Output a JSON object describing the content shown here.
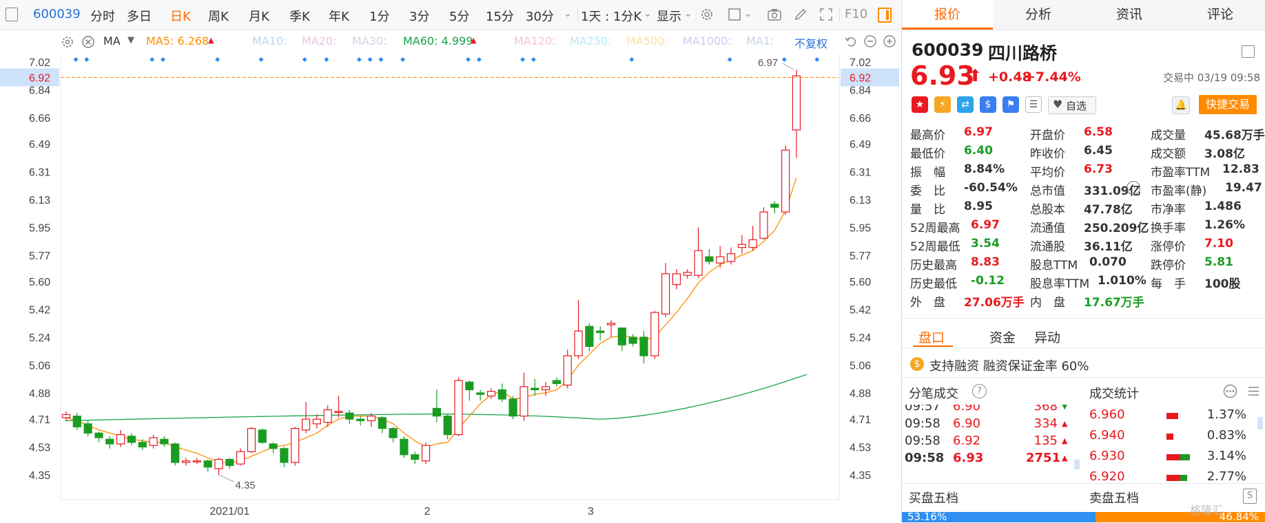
{
  "toolbar": {
    "code": "600039",
    "items": [
      "分时",
      "多日",
      "日K",
      "周K",
      "月K",
      "季K",
      "年K",
      "1分",
      "3分",
      "5分",
      "15分",
      "30分"
    ],
    "active_item": "日K",
    "kline_mode": "1天 : 1分K",
    "display": "显示",
    "f10": "F10"
  },
  "ma_bar": {
    "selector": "MA",
    "ma5": "MA5: 6.268",
    "ma10": "MA10:",
    "ma20": "MA20:",
    "ma30": "MA30:",
    "ma60": "MA60: 4.999",
    "ma120": "MA120:",
    "ma250": "MA250:",
    "ma500": "MA500:",
    "ma1000": "MA1000:",
    "ma1": "MA1:",
    "fuquan": "不复权",
    "colors": {
      "ma5": "#ff8c00",
      "ma60": "#1aa34a",
      "faded": "#c9d3e0"
    }
  },
  "chart_data": {
    "type": "candlestick",
    "ylim": [
      4.24,
      7.1
    ],
    "y_ticks": [
      "7.02",
      "6.84",
      "6.66",
      "6.49",
      "6.31",
      "6.13",
      "5.95",
      "5.77",
      "5.60",
      "5.42",
      "5.24",
      "5.06",
      "4.88",
      "4.71",
      "4.53",
      "4.35"
    ],
    "y_tick_values": [
      7.02,
      6.84,
      6.66,
      6.49,
      6.31,
      6.13,
      5.95,
      5.77,
      5.6,
      5.42,
      5.24,
      5.06,
      4.88,
      4.71,
      4.53,
      4.35
    ],
    "current_price_label": "6.92",
    "current_price": 6.92,
    "max_label": "6.97",
    "min_label": "4.35",
    "x_labels": [
      {
        "text": "2021/01",
        "index": 15
      },
      {
        "text": "2",
        "index": 33
      },
      {
        "text": "3",
        "index": 48
      }
    ],
    "candles": [
      [
        4.72,
        4.74,
        4.7,
        4.76
      ],
      [
        4.73,
        4.66,
        4.64,
        4.75
      ],
      [
        4.68,
        4.62,
        4.6,
        4.7
      ],
      [
        4.62,
        4.59,
        4.56,
        4.63
      ],
      [
        4.58,
        4.55,
        4.52,
        4.6
      ],
      [
        4.55,
        4.61,
        4.53,
        4.64
      ],
      [
        4.6,
        4.56,
        4.54,
        4.62
      ],
      [
        4.56,
        4.53,
        4.51,
        4.58
      ],
      [
        4.54,
        4.59,
        4.52,
        4.61
      ],
      [
        4.58,
        4.55,
        4.53,
        4.6
      ],
      [
        4.55,
        4.43,
        4.41,
        4.56
      ],
      [
        4.43,
        4.44,
        4.41,
        4.46
      ],
      [
        4.44,
        4.44,
        4.42,
        4.46
      ],
      [
        4.44,
        4.4,
        4.37,
        4.45
      ],
      [
        4.39,
        4.45,
        4.35,
        4.46
      ],
      [
        4.45,
        4.41,
        4.39,
        4.46
      ],
      [
        4.42,
        4.5,
        4.41,
        4.52
      ],
      [
        4.5,
        4.65,
        4.49,
        4.66
      ],
      [
        4.64,
        4.56,
        4.55,
        4.65
      ],
      [
        4.55,
        4.52,
        4.49,
        4.56
      ],
      [
        4.52,
        4.43,
        4.4,
        4.53
      ],
      [
        4.43,
        4.65,
        4.41,
        4.66
      ],
      [
        4.64,
        4.71,
        4.62,
        4.82
      ],
      [
        4.68,
        4.71,
        4.65,
        4.74
      ],
      [
        4.69,
        4.77,
        4.66,
        4.8
      ],
      [
        4.76,
        4.76,
        4.72,
        4.86
      ],
      [
        4.75,
        4.71,
        4.68,
        4.77
      ],
      [
        4.71,
        4.7,
        4.67,
        4.73
      ],
      [
        4.7,
        4.73,
        4.66,
        4.75
      ],
      [
        4.72,
        4.65,
        4.62,
        4.73
      ],
      [
        4.65,
        4.59,
        4.56,
        4.66
      ],
      [
        4.58,
        4.48,
        4.46,
        4.6
      ],
      [
        4.48,
        4.45,
        4.42,
        4.5
      ],
      [
        4.44,
        4.54,
        4.42,
        4.56
      ],
      [
        4.78,
        4.73,
        4.69,
        4.9
      ],
      [
        4.73,
        4.61,
        4.58,
        4.74
      ],
      [
        4.61,
        4.96,
        4.6,
        4.98
      ],
      [
        4.95,
        4.9,
        4.83,
        4.96
      ],
      [
        4.88,
        4.87,
        4.83,
        4.9
      ],
      [
        4.86,
        4.89,
        4.84,
        4.91
      ],
      [
        4.9,
        4.84,
        4.82,
        4.94
      ],
      [
        4.84,
        4.73,
        4.71,
        4.86
      ],
      [
        4.73,
        4.92,
        4.7,
        5.01
      ],
      [
        4.91,
        4.9,
        4.86,
        4.97
      ],
      [
        4.9,
        4.92,
        4.86,
        4.95
      ],
      [
        4.96,
        4.94,
        4.92,
        4.98
      ],
      [
        4.93,
        5.12,
        4.91,
        5.16
      ],
      [
        5.12,
        5.28,
        5.1,
        5.48
      ],
      [
        5.31,
        5.18,
        5.15,
        5.33
      ],
      [
        5.28,
        5.27,
        5.22,
        5.31
      ],
      [
        5.32,
        5.33,
        5.24,
        5.35
      ],
      [
        5.3,
        5.19,
        5.15,
        5.3
      ],
      [
        5.24,
        5.2,
        5.18,
        5.26
      ],
      [
        5.24,
        5.12,
        5.07,
        5.28
      ],
      [
        5.12,
        5.4,
        5.1,
        5.41
      ],
      [
        5.39,
        5.65,
        5.37,
        5.72
      ],
      [
        5.58,
        5.65,
        5.55,
        5.68
      ],
      [
        5.64,
        5.66,
        5.62,
        5.68
      ],
      [
        5.64,
        5.8,
        5.62,
        5.95
      ],
      [
        5.76,
        5.73,
        5.71,
        5.81
      ],
      [
        5.72,
        5.76,
        5.69,
        5.83
      ],
      [
        5.73,
        5.78,
        5.71,
        5.82
      ],
      [
        5.82,
        5.84,
        5.78,
        5.9
      ],
      [
        5.82,
        5.87,
        5.8,
        5.96
      ],
      [
        5.88,
        6.05,
        5.87,
        6.08
      ],
      [
        6.1,
        6.08,
        6.04,
        6.12
      ],
      [
        6.05,
        6.45,
        6.03,
        6.48
      ],
      [
        6.58,
        6.93,
        6.4,
        6.97
      ]
    ],
    "ma5": [
      4.72,
      4.7,
      4.67,
      4.64,
      4.62,
      4.6,
      4.58,
      4.57,
      4.56,
      4.56,
      4.53,
      4.51,
      4.49,
      4.46,
      4.43,
      4.43,
      4.44,
      4.47,
      4.5,
      4.53,
      4.54,
      4.56,
      4.59,
      4.62,
      4.67,
      4.71,
      4.73,
      4.73,
      4.73,
      4.71,
      4.68,
      4.62,
      4.57,
      4.53,
      4.55,
      4.56,
      4.65,
      4.73,
      4.81,
      4.87,
      4.89,
      4.84,
      4.85,
      4.87,
      4.88,
      4.9,
      4.96,
      5.06,
      5.13,
      5.2,
      5.24,
      5.25,
      5.24,
      5.22,
      5.24,
      5.32,
      5.4,
      5.49,
      5.59,
      5.66,
      5.71,
      5.74,
      5.77,
      5.8,
      5.86,
      5.93,
      6.06,
      6.27
    ],
    "ma60_start": 4.7,
    "ma60_mid": 4.75,
    "ma60_end": 4.999,
    "markers": [
      0,
      1,
      7,
      8,
      13,
      17,
      21,
      23,
      26,
      27,
      28,
      30,
      36,
      37,
      41,
      42,
      51,
      60,
      65,
      68
    ]
  },
  "quote": {
    "code": "600039",
    "name": "四川路桥",
    "price": "6.93",
    "arrow": "⬆",
    "change": "+0.48",
    "change_pct": "+7.44%",
    "status": "交易中 03/19 09:58",
    "watch_label": "自选",
    "quick_trade": "快捷交易"
  },
  "stats": [
    {
      "label": "最高价",
      "value": "6.97",
      "color": "red"
    },
    {
      "label": "开盘价",
      "value": "6.58",
      "color": "red"
    },
    {
      "label": "成交量",
      "value": "45.68万手",
      "color": "dark"
    },
    {
      "label": "最低价",
      "value": "6.40",
      "color": "green"
    },
    {
      "label": "昨收价",
      "value": "6.45",
      "color": "dark"
    },
    {
      "label": "成交额",
      "value": "3.08亿",
      "color": "dark"
    },
    {
      "label": "振　幅",
      "value": "8.84%",
      "color": "dark"
    },
    {
      "label": "平均价",
      "value": "6.73",
      "color": "red"
    },
    {
      "label": "市盈率TTM",
      "value": "12.83",
      "color": "dark"
    },
    {
      "label": "委　比",
      "value": "-60.54%",
      "color": "dark"
    },
    {
      "label": "总市值",
      "value": "331.09亿",
      "color": "dark"
    },
    {
      "label": "市盈率(静)",
      "value": "19.47",
      "color": "dark"
    },
    {
      "label": "量　比",
      "value": "8.95",
      "color": "dark"
    },
    {
      "label": "总股本",
      "value": "47.78亿",
      "color": "dark"
    },
    {
      "label": "市净率",
      "value": "1.486",
      "color": "dark"
    },
    {
      "label": "52周最高",
      "value": "6.97",
      "color": "red"
    },
    {
      "label": "流通值",
      "value": "250.209亿",
      "color": "dark"
    },
    {
      "label": "换手率",
      "value": "1.26%",
      "color": "dark"
    },
    {
      "label": "52周最低",
      "value": "3.54",
      "color": "green"
    },
    {
      "label": "流通股",
      "value": "36.11亿",
      "color": "dark"
    },
    {
      "label": "涨停价",
      "value": "7.10",
      "color": "red"
    },
    {
      "label": "历史最高",
      "value": "8.83",
      "color": "red"
    },
    {
      "label": "股息TTM",
      "value": "0.070",
      "color": "dark"
    },
    {
      "label": "跌停价",
      "value": "5.81",
      "color": "green"
    },
    {
      "label": "历史最低",
      "value": "-0.12",
      "color": "green"
    },
    {
      "label": "股息率TTM",
      "value": "1.010%",
      "color": "dark"
    },
    {
      "label": "每　手",
      "value": "100股",
      "color": "dark"
    },
    {
      "label": "外　盘",
      "value": "27.06万手",
      "color": "red"
    },
    {
      "label": "内　盘",
      "value": "17.67万手",
      "color": "green"
    },
    {
      "label": "",
      "value": "",
      "color": "dark"
    }
  ],
  "subtabs": [
    "盘口",
    "资金",
    "异动"
  ],
  "margin_banner": "支持融资 融资保证金率 60%",
  "trades_title": "分笔成交",
  "trades": [
    {
      "time": "09:57",
      "price": "6.90",
      "vol": "368",
      "dir": "down"
    },
    {
      "time": "09:58",
      "price": "6.90",
      "vol": "334",
      "dir": "up"
    },
    {
      "time": "09:58",
      "price": "6.92",
      "vol": "135",
      "dir": "up"
    },
    {
      "time": "09:58",
      "price": "6.93",
      "vol": "2751",
      "dir": "up"
    }
  ],
  "deal_stats_title": "成交统计",
  "deal_stats": [
    {
      "price": "6.960",
      "pct": "1.37%",
      "red": 0.5,
      "green": 0.0
    },
    {
      "price": "6.940",
      "pct": "0.83%",
      "red": 0.3,
      "green": 0.0
    },
    {
      "price": "6.930",
      "pct": "3.14%",
      "red": 0.6,
      "green": 0.4
    },
    {
      "price": "6.920",
      "pct": "2.77%",
      "red": 0.6,
      "green": 0.3
    }
  ],
  "order_book": {
    "buy_label": "买盘五档",
    "sell_label": "卖盘五档",
    "buy_pct": "53.16%",
    "sell_pct": "46.84%",
    "buy_ratio": 0.5316
  },
  "watermark": "格隆汇"
}
